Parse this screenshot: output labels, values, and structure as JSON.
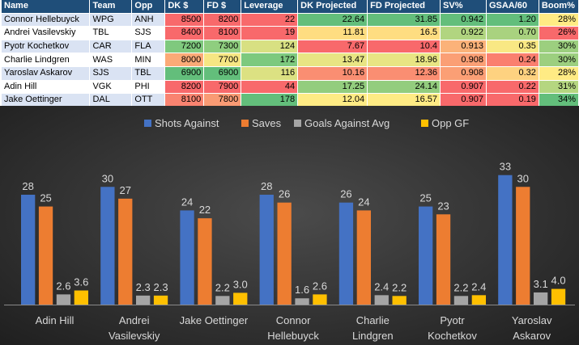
{
  "table": {
    "headers": [
      "Name",
      "Team",
      "Opp",
      "DK $",
      "FD $",
      "Leverage",
      "DK Projected",
      "FD Projected",
      "SV%",
      "GSAA/60",
      "Boom%"
    ],
    "rows": [
      [
        "Connor Hellebuyck",
        "WPG",
        "ANH",
        "8500",
        "8200",
        "22",
        "22.64",
        "31.85",
        "0.942",
        "1.20",
        "28%"
      ],
      [
        "Andrei Vasilevskiy",
        "TBL",
        "SJS",
        "8400",
        "8100",
        "19",
        "11.81",
        "16.5",
        "0.922",
        "0.70",
        "26%"
      ],
      [
        "Pyotr Kochetkov",
        "CAR",
        "FLA",
        "7200",
        "7300",
        "124",
        "7.67",
        "10.4",
        "0.913",
        "0.35",
        "30%"
      ],
      [
        "Charlie Lindgren",
        "WAS",
        "MIN",
        "8000",
        "7700",
        "172",
        "13.47",
        "18.96",
        "0.908",
        "0.24",
        "30%"
      ],
      [
        "Yaroslav Askarov",
        "SJS",
        "TBL",
        "6900",
        "6900",
        "116",
        "10.16",
        "12.36",
        "0.908",
        "0.32",
        "28%"
      ],
      [
        "Adin Hill",
        "VGK",
        "PHI",
        "8200",
        "7900",
        "44",
        "17.25",
        "24.14",
        "0.907",
        "0.22",
        "31%"
      ],
      [
        "Jake Oettinger",
        "DAL",
        "OTT",
        "8100",
        "7800",
        "178",
        "12.04",
        "16.57",
        "0.907",
        "0.19",
        "34%"
      ]
    ],
    "row_colors": [
      [
        "#dae3f3",
        "#dae3f3",
        "#dae3f3",
        "#f8696b",
        "#f8696b",
        "#f8696b",
        "#63be7b",
        "#63be7b",
        "#63be7b",
        "#63be7b",
        "#ffeb84"
      ],
      [
        "#ffffff",
        "#ffffff",
        "#ffffff",
        "#f8696b",
        "#f8696b",
        "#f8696b",
        "#fedd81",
        "#fedd81",
        "#b1d580",
        "#a9d27f",
        "#f8696b"
      ],
      [
        "#dae3f3",
        "#dae3f3",
        "#dae3f3",
        "#7fc97e",
        "#8fce7f",
        "#d8e082",
        "#f8696b",
        "#f8696b",
        "#fbb279",
        "#f9e884",
        "#9ccf7f"
      ],
      [
        "#ffffff",
        "#ffffff",
        "#ffffff",
        "#fbaa77",
        "#f7e683",
        "#7dc97e",
        "#e8e583",
        "#e8e583",
        "#fb9f75",
        "#fa7f6f",
        "#9ccf7f"
      ],
      [
        "#dae3f3",
        "#dae3f3",
        "#dae3f3",
        "#63be7b",
        "#63be7b",
        "#dce182",
        "#fa8e72",
        "#fa8e72",
        "#fb9f75",
        "#fed280",
        "#ffeb84"
      ],
      [
        "#ffffff",
        "#ffffff",
        "#ffffff",
        "#f8696b",
        "#f8696b",
        "#f8696b",
        "#93cd7e",
        "#93cd7e",
        "#f8696b",
        "#f8696b",
        "#b5d680"
      ],
      [
        "#dae3f3",
        "#dae3f3",
        "#dae3f3",
        "#f98370",
        "#f99b74",
        "#63be7b",
        "#ffeb84",
        "#ffeb84",
        "#f8696b",
        "#f8696b",
        "#63be7b"
      ]
    ]
  },
  "chart_data": {
    "type": "bar",
    "categories": [
      [
        "Adin Hill"
      ],
      [
        "Andrei",
        "Vasilevskiy"
      ],
      [
        "Jake Oettinger"
      ],
      [
        "Connor",
        "Hellebuyck"
      ],
      [
        "Charlie",
        "Lindgren"
      ],
      [
        "Pyotr",
        "Kochetkov"
      ],
      [
        "Yaroslav",
        "Askarov"
      ]
    ],
    "series": [
      {
        "name": "Shots Against",
        "color": "#4472c4",
        "values": [
          28,
          30,
          24,
          28,
          26,
          25,
          33
        ],
        "labels": [
          "28",
          "30",
          "24",
          "28",
          "26",
          "25",
          "33"
        ]
      },
      {
        "name": "Saves",
        "color": "#ed7d31",
        "values": [
          25,
          27,
          22,
          26,
          24,
          23,
          30
        ],
        "labels": [
          "25",
          "27",
          "22",
          "26",
          "24",
          "23",
          "30"
        ]
      },
      {
        "name": "Goals Against Avg",
        "color": "#a5a5a5",
        "values": [
          2.6,
          2.3,
          2.2,
          1.6,
          2.4,
          2.2,
          3.1
        ],
        "labels": [
          "2.6",
          "2.3",
          "2.2",
          "1.6",
          "2.4",
          "2.2",
          "3.1"
        ]
      },
      {
        "name": "Opp GF",
        "color": "#ffc000",
        "values": [
          3.6,
          2.3,
          3.0,
          2.6,
          2.2,
          2.4,
          4.0
        ],
        "labels": [
          "3.6",
          "2.3",
          "3.0",
          "2.6",
          "2.2",
          "2.4",
          "4.0"
        ]
      }
    ],
    "ylim": [
      0,
      35
    ],
    "title": "",
    "legend": "top"
  }
}
